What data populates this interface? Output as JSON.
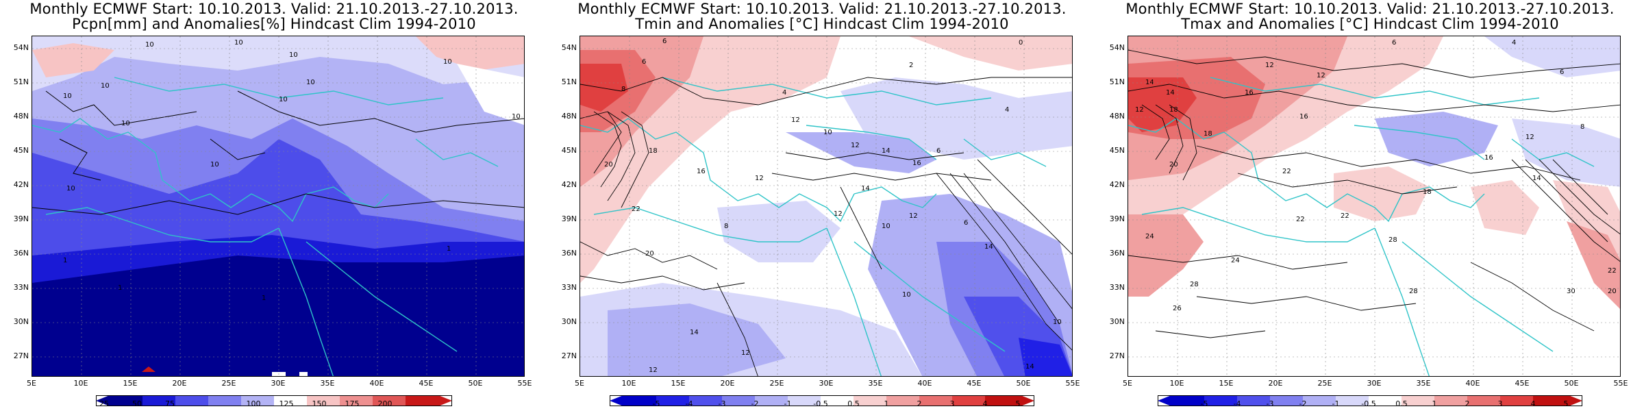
{
  "panels": [
    {
      "title_line1": "Monthly ECMWF Start: 10.10.2013. Valid: 21.10.2013.-27.10.2013.",
      "title_line2": "Pcpn[mm] and Anomalies[%] Hindcast Clim 1994-2010",
      "colorbar_labels": [
        "25",
        "50",
        "75",
        "100",
        "125",
        "150",
        "175",
        "200"
      ]
    },
    {
      "title_line1": "Monthly ECMWF Start: 10.10.2013. Valid: 21.10.2013.-27.10.2013.",
      "title_line2": "Tmin and Anomalies [°C] Hindcast Clim 1994-2010",
      "colorbar_labels": [
        "-5",
        "-4",
        "-3",
        "-2",
        "-1",
        "-0.5",
        "0.5",
        "1",
        "2",
        "3",
        "4",
        "5"
      ]
    },
    {
      "title_line1": "Monthly ECMWF Start: 10.10.2013. Valid: 21.10.2013.-27.10.2013.",
      "title_line2": "Tmax and Anomalies [°C] Hindcast Clim 1994-2010",
      "colorbar_labels": [
        "-5",
        "-4",
        "-3",
        "-2",
        "-1",
        "-0.5",
        "0.5",
        "1",
        "2",
        "3",
        "4",
        "5"
      ]
    }
  ],
  "lat_labels": [
    "54N",
    "51N",
    "48N",
    "45N",
    "42N",
    "39N",
    "36N",
    "33N",
    "30N",
    "27N"
  ],
  "lon_labels": [
    "5E",
    "10E",
    "15E",
    "20E",
    "25E",
    "30E",
    "35E",
    "40E",
    "45E",
    "50E",
    "55E"
  ],
  "contour_labels": {
    "pcpn": [
      "10",
      "10",
      "10",
      "10",
      "10",
      "10",
      "10",
      "10",
      "10",
      "10",
      "10",
      "10",
      "1",
      "1",
      "1",
      "1"
    ],
    "tmin": [
      "6",
      "6",
      "8",
      "4",
      "2",
      "0",
      "12",
      "10",
      "12",
      "14",
      "16",
      "20",
      "18",
      "22",
      "20",
      "16",
      "12",
      "14",
      "12",
      "10",
      "12",
      "14",
      "14",
      "12",
      "12",
      "10",
      "14",
      "4",
      "6",
      "6",
      "8",
      "10"
    ],
    "tmax": [
      "6",
      "4",
      "12",
      "12",
      "14",
      "14",
      "16",
      "12",
      "18",
      "16",
      "18",
      "20",
      "22",
      "24",
      "22",
      "26",
      "28",
      "24",
      "22",
      "28",
      "28",
      "30",
      "20",
      "22",
      "18",
      "14",
      "16",
      "12",
      "8",
      "6"
    ]
  },
  "colors": {
    "precip_scale": [
      "#00008f",
      "#1a1ad6",
      "#4d4dea",
      "#8080f0",
      "#b3b3f5",
      "#dcdcfa",
      "#ffffff",
      "#f7c4c4",
      "#ee9090",
      "#e05656",
      "#c81818"
    ],
    "anomaly_scale": [
      "#0000c8",
      "#2020e6",
      "#5050ec",
      "#8080f0",
      "#b0b0f5",
      "#d8d8fa",
      "#ffffff",
      "#f8d0d0",
      "#f0a0a0",
      "#e87070",
      "#e04040",
      "#c01010"
    ],
    "coastline": "#2fc4c8",
    "contour": "#000000"
  }
}
